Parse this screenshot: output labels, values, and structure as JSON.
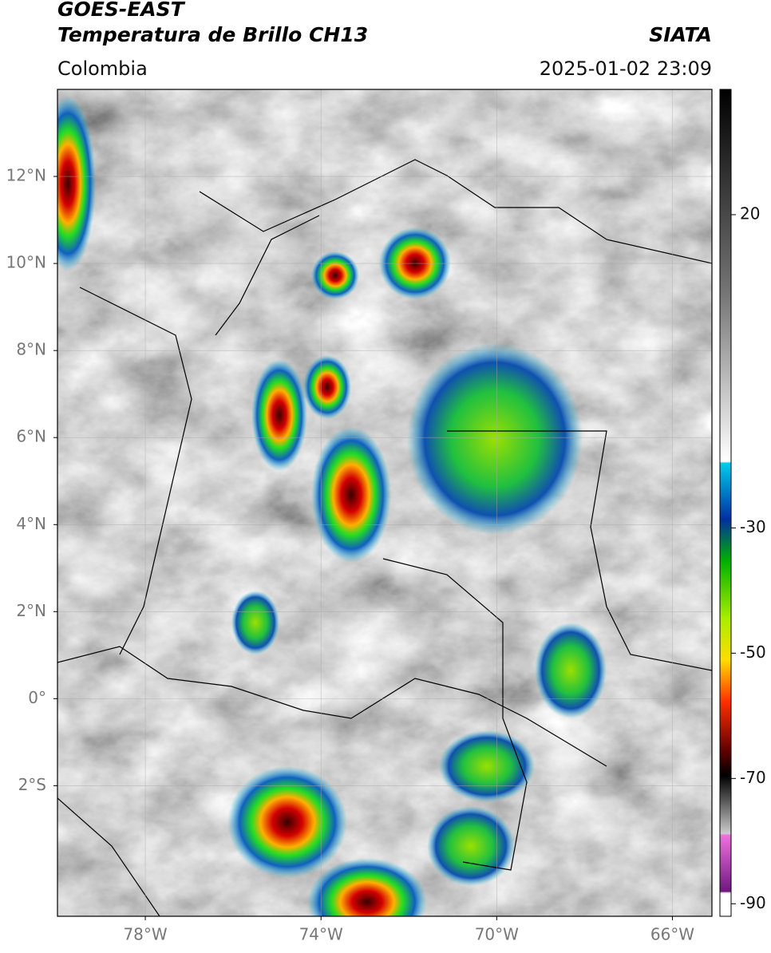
{
  "header": {
    "title": "GOES-EAST",
    "subtitle": "Temperatura de Brillo CH13",
    "source": "SIATA",
    "region": "Colombia",
    "timestamp": "2025-01-02 23:09"
  },
  "map": {
    "xlim": [
      -80,
      -65.1
    ],
    "ylim": [
      -5,
      14
    ],
    "xticks": [
      {
        "value": -78,
        "label": "78°W"
      },
      {
        "value": -74,
        "label": "74°W"
      },
      {
        "value": -70,
        "label": "70°W"
      },
      {
        "value": -66,
        "label": "66°W"
      }
    ],
    "yticks": [
      {
        "value": 12,
        "label": "12°N"
      },
      {
        "value": 10,
        "label": "10°N"
      },
      {
        "value": 8,
        "label": "8°N"
      },
      {
        "value": 6,
        "label": "6°N"
      },
      {
        "value": 4,
        "label": "4°N"
      },
      {
        "value": 2,
        "label": "2°N"
      },
      {
        "value": 0,
        "label": "0°"
      },
      {
        "value": -2,
        "label": "2°S"
      }
    ],
    "grid": true
  },
  "colorbar": {
    "lim": [
      -92,
      40
    ],
    "ticks": [
      20,
      -30,
      -50,
      -70,
      -90
    ]
  }
}
